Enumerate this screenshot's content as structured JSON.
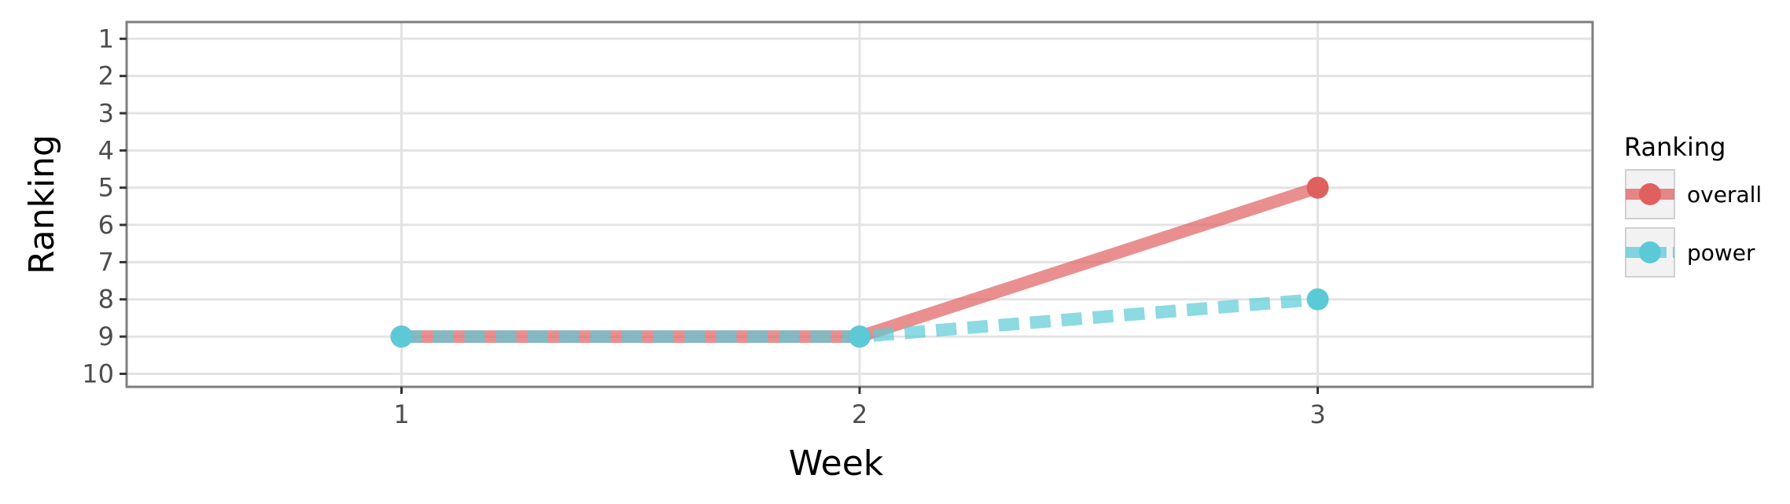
{
  "chart_data": {
    "type": "line",
    "title": "",
    "xlabel": "Week",
    "ylabel": "Ranking",
    "x": [
      1,
      2,
      3
    ],
    "x_ticks": [
      "1",
      "2",
      "3"
    ],
    "xlim": [
      0.4,
      3.6
    ],
    "y_ticks": [
      "1",
      "2",
      "3",
      "4",
      "5",
      "6",
      "7",
      "8",
      "9",
      "10"
    ],
    "ylim": [
      10.35,
      0.55
    ],
    "y_reversed": true,
    "grid": true,
    "legend": {
      "title": "Ranking",
      "position": "right",
      "entries": [
        "overall",
        "power"
      ]
    },
    "series": [
      {
        "name": "overall",
        "values": [
          9,
          9,
          5
        ],
        "color": "#e06060",
        "line_style": "solid"
      },
      {
        "name": "power",
        "values": [
          9,
          9,
          8
        ],
        "color": "#5bcad6",
        "line_style": "dashed"
      }
    ]
  }
}
